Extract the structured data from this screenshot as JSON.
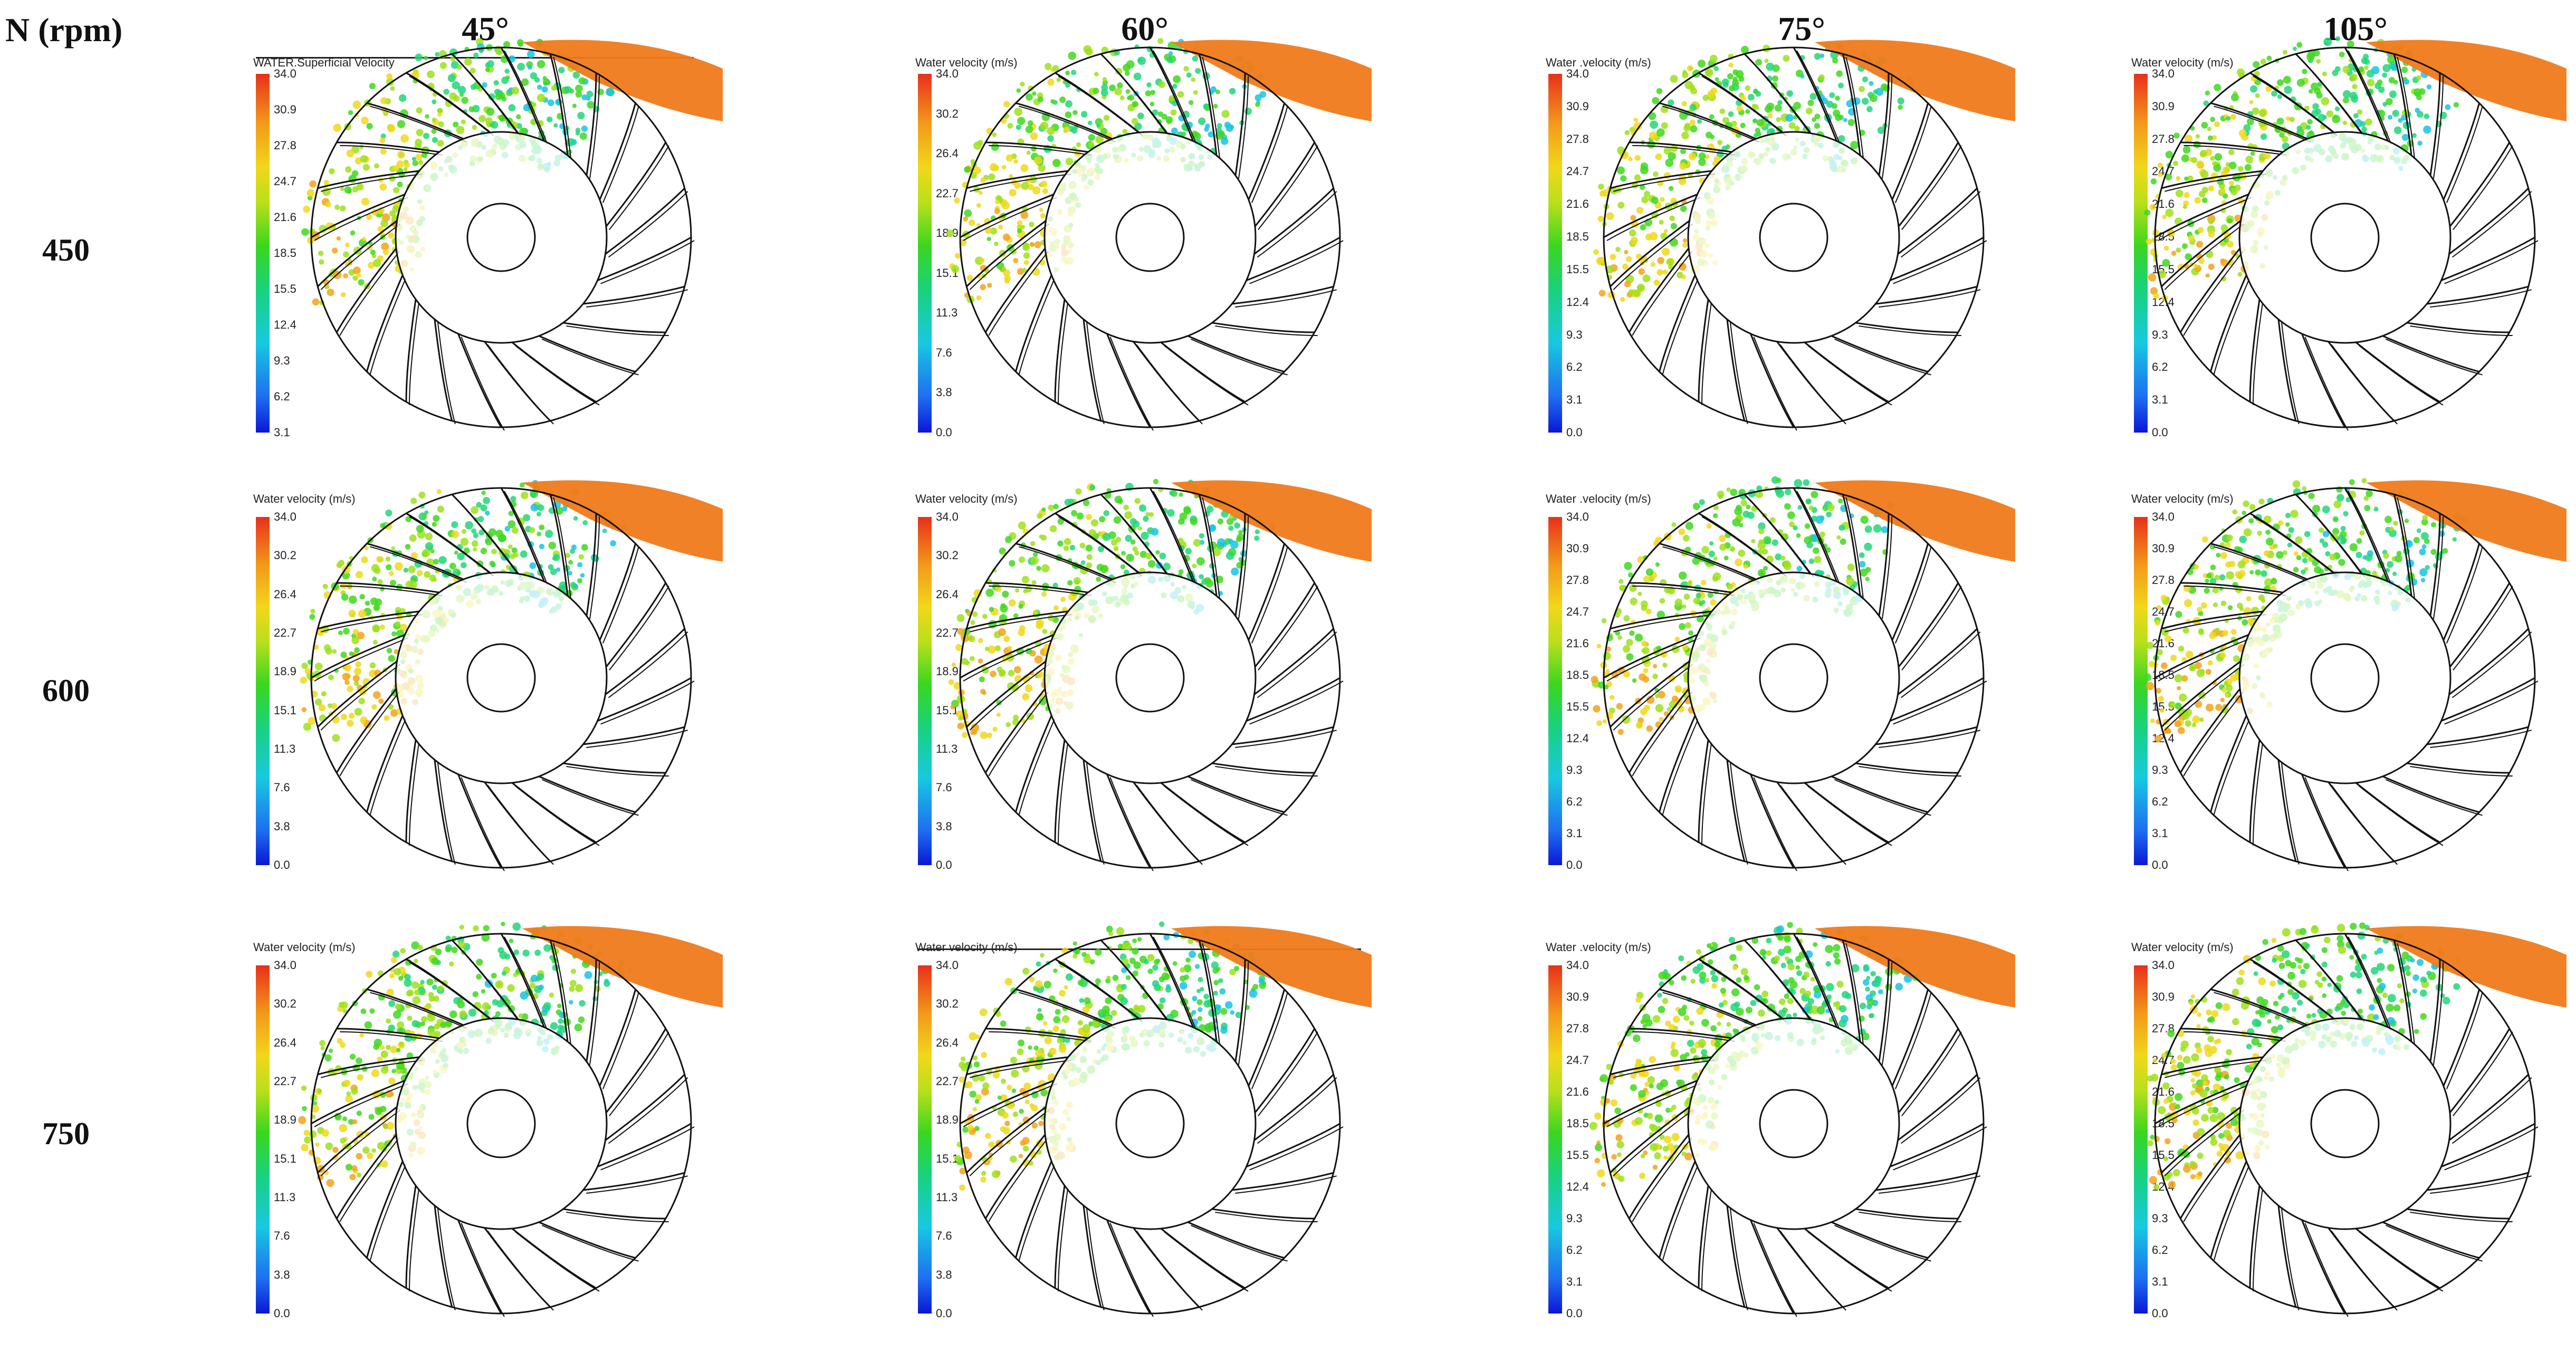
{
  "figure": {
    "row_header": "N (rpm)",
    "columns": [
      "45°",
      "60°",
      "75°",
      "105°"
    ],
    "rows": [
      "450",
      "600",
      "750"
    ]
  },
  "colorbar": {
    "colors": [
      "#0a17d6",
      "#17c9e0",
      "#3bd61e",
      "#f2d71a",
      "#e8301a"
    ],
    "label_main": "Water velocity (m/s)",
    "label_variant": "Water .velocity (m/s)",
    "label_superficial": "WATER.Superficial Velocity",
    "ticks_a": [
      "34.0",
      "30.2",
      "26.4",
      "22.7",
      "18.9",
      "15.1",
      "11.3",
      "7.6",
      "3.8",
      "0.0"
    ],
    "ticks_a_top": [
      "34.0",
      "30.9",
      "27.8",
      "24.7",
      "21.6",
      "18.5",
      "15.5",
      "12.4",
      "9.3",
      "6.2",
      "3.1"
    ],
    "ticks_b": [
      "34.0",
      "30.9",
      "27.8",
      "24.7",
      "21.6",
      "18.5",
      "15.5",
      "12.4",
      "9.3",
      "6.2",
      "3.1",
      "0.0"
    ]
  },
  "panels": [
    {
      "title": "WATER.Superficial Velocity",
      "ticks": [
        "34.0",
        "30.9",
        "27.8",
        "24.7",
        "21.6",
        "18.5",
        "15.5",
        "12.4",
        "9.3",
        "6.2",
        "3.1"
      ]
    },
    {
      "title": "Water velocity (m/s)",
      "ticks": [
        "34.0",
        "30.2",
        "26.4",
        "22.7",
        "18.9",
        "15.1",
        "11.3",
        "7.6",
        "3.8",
        "0.0"
      ]
    },
    {
      "title": "Water .velocity (m/s)",
      "ticks": [
        "34.0",
        "30.9",
        "27.8",
        "24.7",
        "21.6",
        "18.5",
        "15.5",
        "12.4",
        "9.3",
        "6.2",
        "3.1",
        "0.0"
      ]
    },
    {
      "title": "Water velocity (m/s)",
      "ticks": [
        "34.0",
        "30.9",
        "27.8",
        "24.7",
        "21.6",
        "18.5",
        "15.5",
        "12.4",
        "9.3",
        "6.2",
        "3.1",
        "0.0"
      ]
    },
    {
      "title": "Water velocity (m/s)",
      "ticks": [
        "34.0",
        "30.2",
        "26.4",
        "22.7",
        "18.9",
        "15.1",
        "11.3",
        "7.6",
        "3.8",
        "0.0"
      ]
    },
    {
      "title": "Water velocity (m/s)",
      "ticks": [
        "34.0",
        "30.2",
        "26.4",
        "22.7",
        "18.9",
        "15.1",
        "11.3",
        "7.6",
        "3.8",
        "0.0"
      ]
    },
    {
      "title": "Water .velocity (m/s)",
      "ticks": [
        "34.0",
        "30.9",
        "27.8",
        "24.7",
        "21.6",
        "18.5",
        "15.5",
        "12.4",
        "9.3",
        "6.2",
        "3.1",
        "0.0"
      ]
    },
    {
      "title": "Water velocity (m/s)",
      "ticks": [
        "34.0",
        "30.9",
        "27.8",
        "24.7",
        "21.6",
        "18.5",
        "15.5",
        "12.4",
        "9.3",
        "6.2",
        "3.1",
        "0.0"
      ]
    },
    {
      "title": "Water velocity (m/s)",
      "ticks": [
        "34.0",
        "30.2",
        "26.4",
        "22.7",
        "18.9",
        "15.1",
        "11.3",
        "7.6",
        "3.8",
        "0.0"
      ]
    },
    {
      "title": "Water velocity (m/s)",
      "ticks": [
        "34.0",
        "30.2",
        "26.4",
        "22.7",
        "18.9",
        "15.1",
        "11.3",
        "7.6",
        "3.8",
        "0.0"
      ]
    },
    {
      "title": "Water .velocity (m/s)",
      "ticks": [
        "34.0",
        "30.9",
        "27.8",
        "24.7",
        "21.6",
        "18.5",
        "15.5",
        "12.4",
        "9.3",
        "6.2",
        "3.1",
        "0.0"
      ]
    },
    {
      "title": "Water velocity (m/s)",
      "ticks": [
        "34.0",
        "30.9",
        "27.8",
        "24.7",
        "21.6",
        "18.5",
        "15.5",
        "12.4",
        "9.3",
        "6.2",
        "3.1",
        "0.0"
      ]
    }
  ]
}
